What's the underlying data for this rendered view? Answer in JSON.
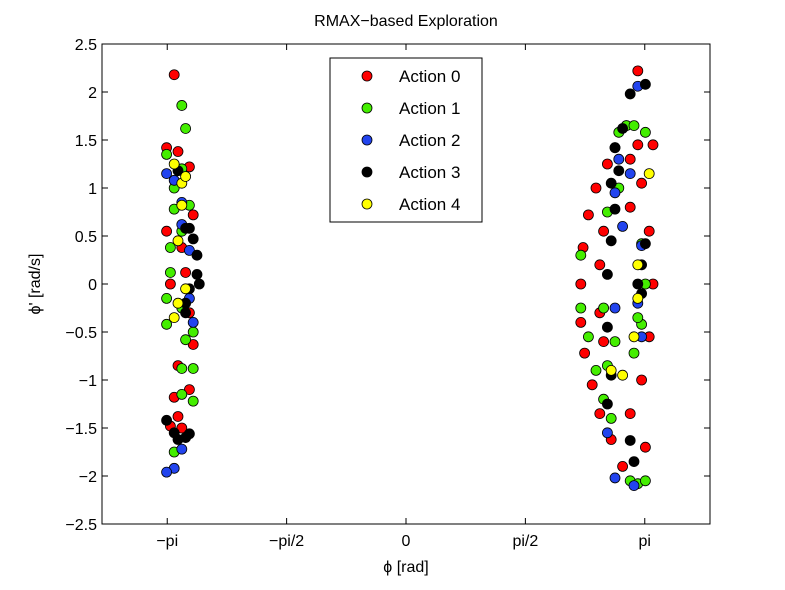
{
  "chart_data": {
    "type": "scatter",
    "title": "RMAX−based Exploration",
    "xlabel": "ϕ [rad]",
    "ylabel": "ϕ' [rad/s]",
    "xlim": [
      -4.0,
      4.0
    ],
    "ylim": [
      -2.5,
      2.5
    ],
    "xticks": [
      {
        "value": -3.1416,
        "label": "−pi"
      },
      {
        "value": -1.5708,
        "label": "−pi/2"
      },
      {
        "value": 0,
        "label": "0"
      },
      {
        "value": 1.5708,
        "label": "pi/2"
      },
      {
        "value": 3.1416,
        "label": "pi"
      }
    ],
    "yticks": [
      {
        "value": 2.5,
        "label": "2.5"
      },
      {
        "value": 2,
        "label": "2"
      },
      {
        "value": 1.5,
        "label": "1.5"
      },
      {
        "value": 1,
        "label": "1"
      },
      {
        "value": 0.5,
        "label": "0.5"
      },
      {
        "value": 0,
        "label": "0"
      },
      {
        "value": -0.5,
        "label": "−0.5"
      },
      {
        "value": -1,
        "label": "−1"
      },
      {
        "value": -1.5,
        "label": "−1.5"
      },
      {
        "value": -2,
        "label": "−2"
      },
      {
        "value": -2.5,
        "label": "−2.5"
      }
    ],
    "grid": false,
    "legend_position": "top-center",
    "series": [
      {
        "name": "Action 0",
        "color": "#ff0000",
        "points": [
          [
            -3.05,
            2.18
          ],
          [
            -3.15,
            1.42
          ],
          [
            -3.0,
            1.38
          ],
          [
            -2.85,
            1.22
          ],
          [
            -2.8,
            0.72
          ],
          [
            -3.15,
            0.55
          ],
          [
            -2.95,
            0.38
          ],
          [
            -2.9,
            0.12
          ],
          [
            -3.1,
            0.0
          ],
          [
            -2.85,
            -0.3
          ],
          [
            -2.8,
            -0.63
          ],
          [
            -3.0,
            -0.85
          ],
          [
            -2.85,
            -1.1
          ],
          [
            -3.05,
            -1.18
          ],
          [
            -3.0,
            -1.38
          ],
          [
            -3.1,
            -1.48
          ],
          [
            -2.95,
            -1.5
          ],
          [
            3.05,
            2.22
          ],
          [
            2.9,
            1.65
          ],
          [
            2.75,
            1.42
          ],
          [
            2.65,
            1.25
          ],
          [
            2.5,
            1.0
          ],
          [
            2.4,
            0.72
          ],
          [
            2.33,
            0.38
          ],
          [
            2.3,
            0.0
          ],
          [
            2.3,
            -0.4
          ],
          [
            2.35,
            -0.72
          ],
          [
            2.45,
            -1.05
          ],
          [
            2.55,
            -1.35
          ],
          [
            2.7,
            -1.62
          ],
          [
            2.85,
            -1.9
          ],
          [
            3.15,
            -1.7
          ],
          [
            3.25,
            1.45
          ],
          [
            3.1,
            1.05
          ],
          [
            3.2,
            0.55
          ],
          [
            3.25,
            0.0
          ],
          [
            3.2,
            -0.55
          ],
          [
            3.1,
            -1.0
          ],
          [
            2.95,
            -1.35
          ],
          [
            2.55,
            0.2
          ],
          [
            2.55,
            -0.3
          ],
          [
            2.6,
            0.55
          ],
          [
            2.6,
            -0.6
          ],
          [
            2.95,
            0.8
          ],
          [
            2.95,
            1.3
          ],
          [
            3.05,
            1.45
          ]
        ]
      },
      {
        "name": "Action 1",
        "color": "#44ee00",
        "points": [
          [
            -2.95,
            1.86
          ],
          [
            -2.9,
            1.62
          ],
          [
            -3.15,
            1.35
          ],
          [
            -2.95,
            1.2
          ],
          [
            -3.05,
            1.0
          ],
          [
            -2.85,
            0.82
          ],
          [
            -3.05,
            0.78
          ],
          [
            -2.95,
            0.55
          ],
          [
            -3.1,
            0.38
          ],
          [
            -3.1,
            0.12
          ],
          [
            -3.15,
            -0.15
          ],
          [
            -3.15,
            -0.42
          ],
          [
            -2.95,
            -0.25
          ],
          [
            -2.8,
            -0.5
          ],
          [
            -2.9,
            -0.58
          ],
          [
            -2.8,
            -0.88
          ],
          [
            -2.95,
            -0.88
          ],
          [
            -2.95,
            -1.15
          ],
          [
            -2.8,
            -1.22
          ],
          [
            -3.05,
            -1.75
          ],
          [
            2.3,
            0.3
          ],
          [
            2.3,
            -0.25
          ],
          [
            2.4,
            -0.55
          ],
          [
            2.5,
            -0.9
          ],
          [
            2.6,
            -1.2
          ],
          [
            2.7,
            -1.4
          ],
          [
            2.8,
            1.58
          ],
          [
            2.9,
            1.65
          ],
          [
            3.0,
            1.65
          ],
          [
            3.15,
            1.58
          ],
          [
            2.95,
            -2.05
          ],
          [
            3.05,
            -2.08
          ],
          [
            3.15,
            -2.05
          ],
          [
            3.1,
            0.42
          ],
          [
            3.1,
            -0.42
          ],
          [
            2.65,
            -0.85
          ],
          [
            2.75,
            -0.6
          ],
          [
            2.65,
            0.75
          ],
          [
            2.8,
            1.0
          ],
          [
            2.6,
            -0.25
          ],
          [
            3.15,
            0.0
          ],
          [
            3.0,
            -0.72
          ],
          [
            3.05,
            -0.35
          ]
        ]
      },
      {
        "name": "Action 2",
        "color": "#2244ee",
        "points": [
          [
            -3.15,
            1.15
          ],
          [
            -3.05,
            1.08
          ],
          [
            -2.95,
            0.85
          ],
          [
            -2.95,
            0.62
          ],
          [
            -2.85,
            0.35
          ],
          [
            -2.85,
            -0.15
          ],
          [
            -2.8,
            -0.4
          ],
          [
            -3.05,
            -1.92
          ],
          [
            -3.15,
            -1.96
          ],
          [
            -2.95,
            -1.72
          ],
          [
            3.05,
            2.06
          ],
          [
            2.8,
            1.3
          ],
          [
            2.75,
            0.95
          ],
          [
            2.95,
            1.15
          ],
          [
            2.85,
            0.6
          ],
          [
            3.1,
            0.4
          ],
          [
            3.05,
            -0.2
          ],
          [
            3.1,
            -0.55
          ],
          [
            2.65,
            -1.55
          ],
          [
            2.75,
            -2.02
          ],
          [
            3.0,
            -2.1
          ],
          [
            2.75,
            -0.25
          ]
        ]
      },
      {
        "name": "Action 3",
        "color": "#000000",
        "points": [
          [
            -3.0,
            1.18
          ],
          [
            -2.9,
            0.58
          ],
          [
            -2.85,
            0.58
          ],
          [
            -2.8,
            0.47
          ],
          [
            -2.75,
            0.3
          ],
          [
            -2.75,
            0.1
          ],
          [
            -2.72,
            0.0
          ],
          [
            -2.85,
            -0.05
          ],
          [
            -2.9,
            -0.2
          ],
          [
            -2.9,
            -0.3
          ],
          [
            -3.15,
            -1.42
          ],
          [
            -3.05,
            -1.55
          ],
          [
            -3.0,
            -1.62
          ],
          [
            -2.9,
            -1.6
          ],
          [
            -2.85,
            -1.56
          ],
          [
            2.95,
            1.98
          ],
          [
            3.15,
            2.08
          ],
          [
            2.85,
            1.62
          ],
          [
            2.75,
            1.42
          ],
          [
            2.8,
            1.18
          ],
          [
            2.7,
            1.05
          ],
          [
            2.75,
            0.78
          ],
          [
            2.7,
            0.45
          ],
          [
            2.65,
            0.1
          ],
          [
            3.15,
            0.42
          ],
          [
            3.1,
            0.2
          ],
          [
            3.05,
            0.0
          ],
          [
            3.1,
            -0.1
          ],
          [
            2.65,
            -0.45
          ],
          [
            2.7,
            -0.95
          ],
          [
            3.0,
            -1.85
          ],
          [
            2.95,
            -1.63
          ],
          [
            2.65,
            -1.25
          ]
        ]
      },
      {
        "name": "Action 4",
        "color": "#ffff00",
        "points": [
          [
            -2.95,
            1.05
          ],
          [
            -2.9,
            1.12
          ],
          [
            -3.05,
            1.25
          ],
          [
            -2.95,
            0.82
          ],
          [
            -3.0,
            0.45
          ],
          [
            -2.9,
            -0.05
          ],
          [
            -3.0,
            -0.2
          ],
          [
            -3.05,
            -0.35
          ],
          [
            3.2,
            1.15
          ],
          [
            3.05,
            0.2
          ],
          [
            3.05,
            -0.15
          ],
          [
            2.7,
            -0.9
          ],
          [
            2.85,
            -0.95
          ],
          [
            3.0,
            -0.55
          ]
        ]
      }
    ]
  }
}
